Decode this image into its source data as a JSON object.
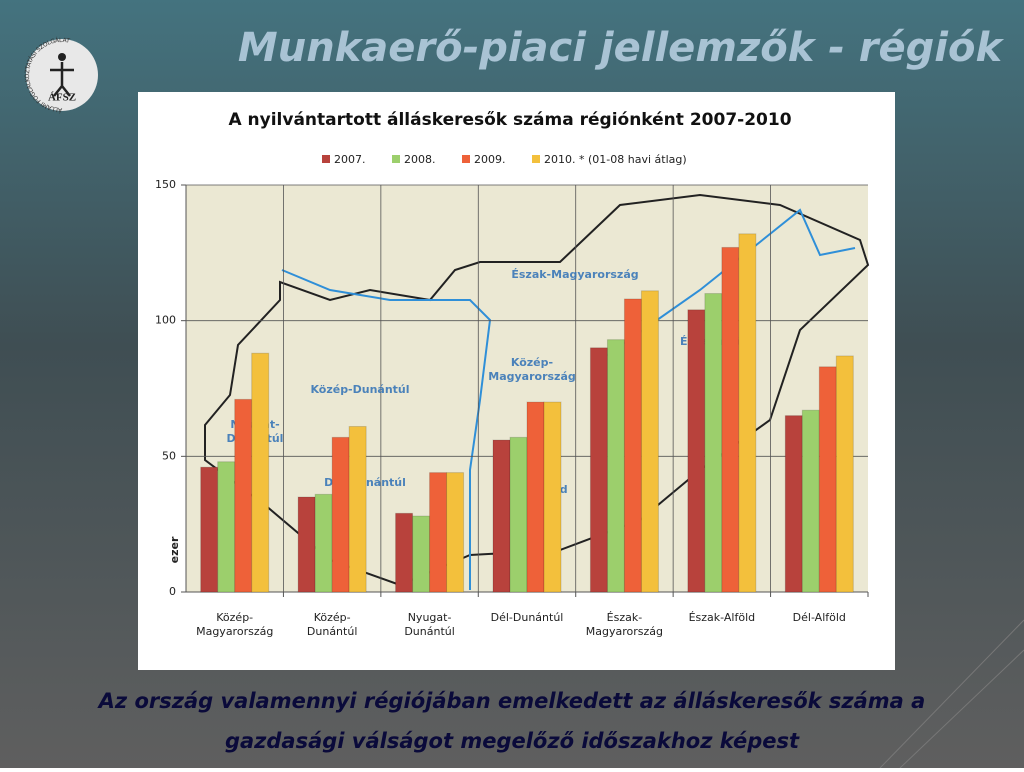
{
  "title": "Munkaerő-piaci jellemzők - régiók",
  "logo": {
    "text": "ÁFSZ",
    "ring": "ÁLLAMI FOGLALKOZTATÁSI SZOLGÁLAT"
  },
  "caption": [
    "Az ország valamennyi régiójában emelkedett az álláskeresők száma a",
    "gazdasági válságot megelőző időszakhoz képest"
  ],
  "chart_data": {
    "type": "bar",
    "title": "A nyilvántartott álláskeresők száma régiónként 2007-2010",
    "y_label": "ezer",
    "categories": [
      "Közép-\nMagyarország",
      "Közép-\nDunántúl",
      "Nyugat-\nDunántúl",
      "Dél-Dunántúl",
      "Észak-\nMagyarország",
      "Észak-Alföld",
      "Dél-Alföld"
    ],
    "series": [
      {
        "name": "2007.",
        "color": "#b8423c",
        "values": [
          46,
          35,
          29,
          56,
          90,
          104,
          65
        ]
      },
      {
        "name": "2008.",
        "color": "#9ccf6c",
        "values": [
          48,
          36,
          28,
          57,
          93,
          110,
          67
        ]
      },
      {
        "name": "2009.",
        "color": "#ee6139",
        "values": [
          71,
          57,
          44,
          70,
          108,
          127,
          83
        ]
      },
      {
        "name": "2010. * (01-08 havi átlag)",
        "color": "#f3c03c",
        "values": [
          88,
          61,
          44,
          70,
          111,
          132,
          87
        ]
      }
    ],
    "ylim": [
      0,
      150
    ],
    "yticks": [
      0,
      50,
      100,
      150
    ],
    "grid": true,
    "map_labels": [
      "Nyugat-\nDunántúl",
      "Közép-Dunántúl",
      "Dél-Dunántúl",
      "Közép-\nMagyarország",
      "Dél-Alföld",
      "Észak-Magyarország",
      "Észak-Alföld"
    ]
  }
}
